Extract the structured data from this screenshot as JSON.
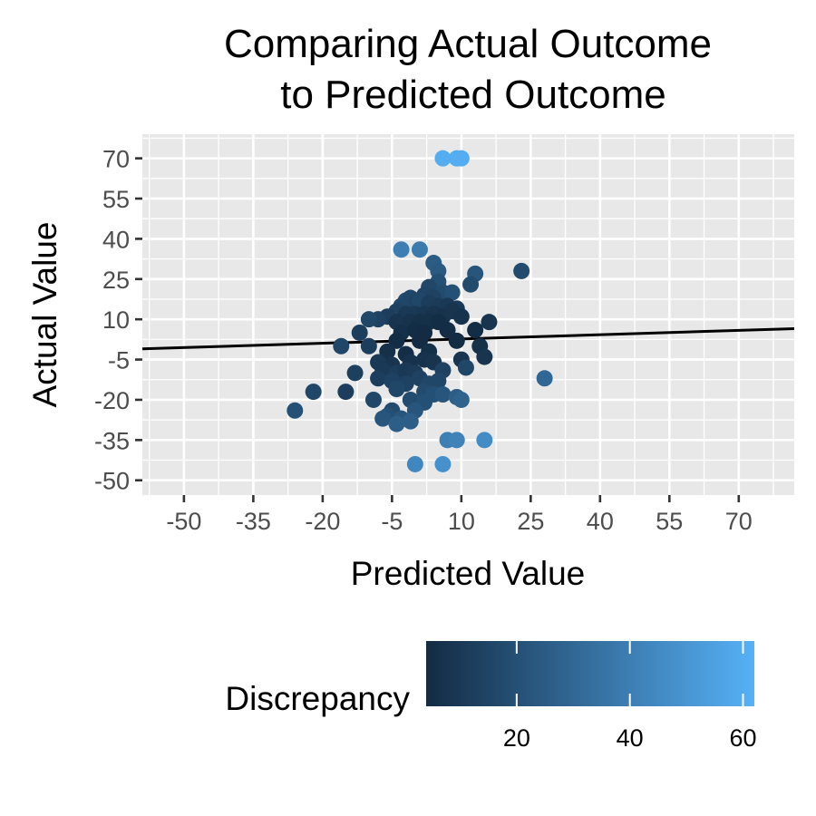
{
  "chart_data": {
    "type": "scatter",
    "title_lines": [
      "Comparing Actual Outcome",
      "to Predicted Outcome"
    ],
    "xlabel": "Predicted Value",
    "ylabel": "Actual Value",
    "xlim": [
      -59,
      82
    ],
    "ylim": [
      -55.5,
      79
    ],
    "x_ticks": [
      -50,
      -35,
      -20,
      -5,
      10,
      25,
      40,
      55,
      70
    ],
    "y_ticks": [
      -50,
      -35,
      -20,
      -5,
      10,
      25,
      40,
      55,
      70
    ],
    "grid": true,
    "panel_background": "#e8e8e8",
    "grid_color": "#ffffff",
    "point_color_low": "#132b43",
    "point_color_high": "#56b1f7",
    "fit_line": {
      "x": [
        -59,
        82
      ],
      "y": [
        -1,
        6.5
      ],
      "color": "#000000"
    },
    "legend": {
      "title": "Discrepancy",
      "position": "bottom",
      "range": [
        4,
        62
      ],
      "ticks": [
        20,
        40,
        60
      ],
      "tick_labels": [
        "20",
        "40",
        "60"
      ]
    },
    "points": [
      {
        "x": 6,
        "y": 70,
        "d": 60
      },
      {
        "x": 9,
        "y": 70,
        "d": 60
      },
      {
        "x": 10,
        "y": 70,
        "d": 60
      },
      {
        "x": -3,
        "y": 36,
        "d": 40
      },
      {
        "x": 1,
        "y": 36,
        "d": 38
      },
      {
        "x": 4,
        "y": 31,
        "d": 25
      },
      {
        "x": 5,
        "y": 28,
        "d": 24
      },
      {
        "x": 13,
        "y": 27,
        "d": 22
      },
      {
        "x": 23,
        "y": 28,
        "d": 18
      },
      {
        "x": 12,
        "y": 23,
        "d": 18
      },
      {
        "x": 5,
        "y": 24,
        "d": 20
      },
      {
        "x": 3,
        "y": 22,
        "d": 16
      },
      {
        "x": 6,
        "y": 20,
        "d": 18
      },
      {
        "x": 8,
        "y": 20,
        "d": 20
      },
      {
        "x": 2,
        "y": 19,
        "d": 15
      },
      {
        "x": 4,
        "y": 18,
        "d": 14
      },
      {
        "x": -2,
        "y": 17,
        "d": 18
      },
      {
        "x": -1,
        "y": 18,
        "d": 16
      },
      {
        "x": 0,
        "y": 16,
        "d": 14
      },
      {
        "x": 1,
        "y": 17,
        "d": 16
      },
      {
        "x": 3,
        "y": 16,
        "d": 12
      },
      {
        "x": 5,
        "y": 15,
        "d": 11
      },
      {
        "x": 7,
        "y": 15,
        "d": 10
      },
      {
        "x": 9,
        "y": 14,
        "d": 10
      },
      {
        "x": -3,
        "y": 15,
        "d": 16
      },
      {
        "x": -4,
        "y": 13,
        "d": 14
      },
      {
        "x": -2,
        "y": 12,
        "d": 10
      },
      {
        "x": 0,
        "y": 12,
        "d": 10
      },
      {
        "x": 2,
        "y": 12,
        "d": 9
      },
      {
        "x": 4,
        "y": 12,
        "d": 8
      },
      {
        "x": 6,
        "y": 11,
        "d": 7
      },
      {
        "x": 8,
        "y": 13,
        "d": 8
      },
      {
        "x": 10,
        "y": 11,
        "d": 7
      },
      {
        "x": -6,
        "y": 11,
        "d": 12
      },
      {
        "x": -8,
        "y": 10,
        "d": 14
      },
      {
        "x": -10,
        "y": 10,
        "d": 16
      },
      {
        "x": -4,
        "y": 9,
        "d": 8
      },
      {
        "x": -1,
        "y": 9,
        "d": 7
      },
      {
        "x": 1,
        "y": 9,
        "d": 6
      },
      {
        "x": 3,
        "y": 9,
        "d": 6
      },
      {
        "x": 5,
        "y": 9,
        "d": 5
      },
      {
        "x": 16,
        "y": 9,
        "d": 8
      },
      {
        "x": -12,
        "y": 5,
        "d": 12
      },
      {
        "x": -3,
        "y": 5,
        "d": 6
      },
      {
        "x": 0,
        "y": 6,
        "d": 5
      },
      {
        "x": 2,
        "y": 5,
        "d": 4
      },
      {
        "x": 7,
        "y": 6,
        "d": 5
      },
      {
        "x": 13,
        "y": 6,
        "d": 5
      },
      {
        "x": -4,
        "y": 2,
        "d": 5
      },
      {
        "x": 1,
        "y": 2,
        "d": 4
      },
      {
        "x": 9,
        "y": 2,
        "d": 4
      },
      {
        "x": -16,
        "y": 0,
        "d": 16
      },
      {
        "x": -10,
        "y": 0,
        "d": 12
      },
      {
        "x": -6,
        "y": -2,
        "d": 6
      },
      {
        "x": -2,
        "y": -3,
        "d": 5
      },
      {
        "x": 3,
        "y": -2,
        "d": 6
      },
      {
        "x": 14,
        "y": 0,
        "d": 6
      },
      {
        "x": 15,
        "y": -4,
        "d": 8
      },
      {
        "x": 10,
        "y": -5,
        "d": 8
      },
      {
        "x": -8,
        "y": -6,
        "d": 10
      },
      {
        "x": -5,
        "y": -7,
        "d": 8
      },
      {
        "x": -1,
        "y": -6,
        "d": 7
      },
      {
        "x": 2,
        "y": -5,
        "d": 7
      },
      {
        "x": 4,
        "y": -6,
        "d": 8
      },
      {
        "x": -7,
        "y": -9,
        "d": 10
      },
      {
        "x": -4,
        "y": -10,
        "d": 12
      },
      {
        "x": -2,
        "y": -9,
        "d": 10
      },
      {
        "x": 0,
        "y": -10,
        "d": 11
      },
      {
        "x": 6,
        "y": -9,
        "d": 14
      },
      {
        "x": 11,
        "y": -8,
        "d": 16
      },
      {
        "x": -13,
        "y": -10,
        "d": 13
      },
      {
        "x": -8,
        "y": -12,
        "d": 12
      },
      {
        "x": -5,
        "y": -13,
        "d": 14
      },
      {
        "x": -2,
        "y": -14,
        "d": 14
      },
      {
        "x": 1,
        "y": -12,
        "d": 14
      },
      {
        "x": 3,
        "y": -14,
        "d": 16
      },
      {
        "x": 5,
        "y": -13,
        "d": 16
      },
      {
        "x": 28,
        "y": -12,
        "d": 30
      },
      {
        "x": -22,
        "y": -17,
        "d": 16
      },
      {
        "x": -15,
        "y": -17,
        "d": 12
      },
      {
        "x": -4,
        "y": -16,
        "d": 16
      },
      {
        "x": 2,
        "y": -17,
        "d": 18
      },
      {
        "x": 4,
        "y": -18,
        "d": 20
      },
      {
        "x": 6,
        "y": -18,
        "d": 22
      },
      {
        "x": 9,
        "y": -19,
        "d": 26
      },
      {
        "x": -9,
        "y": -20,
        "d": 16
      },
      {
        "x": -1,
        "y": -20,
        "d": 18
      },
      {
        "x": 10,
        "y": -20,
        "d": 28
      },
      {
        "x": 2,
        "y": -21,
        "d": 20
      },
      {
        "x": -26,
        "y": -24,
        "d": 20
      },
      {
        "x": -5,
        "y": -24,
        "d": 18
      },
      {
        "x": 0,
        "y": -24,
        "d": 22
      },
      {
        "x": -6,
        "y": -26,
        "d": 20
      },
      {
        "x": -3,
        "y": -27,
        "d": 22
      },
      {
        "x": -1,
        "y": -28,
        "d": 26
      },
      {
        "x": -7,
        "y": -27,
        "d": 22
      },
      {
        "x": -4,
        "y": -29,
        "d": 26
      },
      {
        "x": 7,
        "y": -35,
        "d": 40
      },
      {
        "x": 9,
        "y": -35,
        "d": 42
      },
      {
        "x": 15,
        "y": -35,
        "d": 46
      },
      {
        "x": 0,
        "y": -44,
        "d": 44
      },
      {
        "x": 6,
        "y": -44,
        "d": 48
      }
    ]
  }
}
